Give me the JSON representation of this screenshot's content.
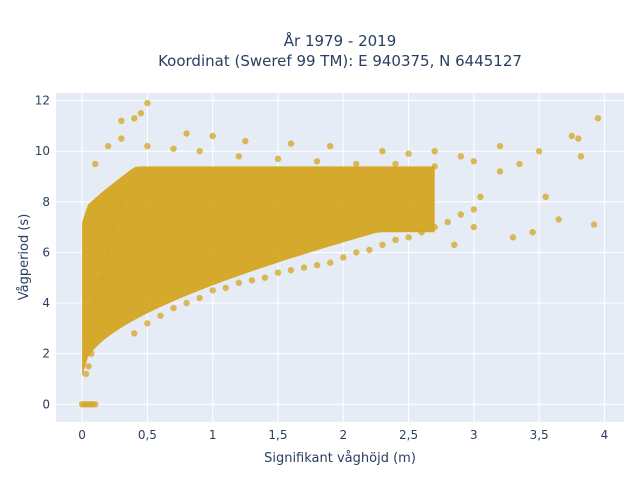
{
  "chart_data": {
    "type": "scatter",
    "title": "År 1979 - 2019",
    "subtitle": "Koordinat (Sweref 99 TM): E 940375, N 6445127",
    "xlabel": "Signifikant våghöjd (m)",
    "ylabel": "Vågperiod (s)",
    "xlim": [
      -0.2,
      4.15
    ],
    "ylim": [
      -0.7,
      12.3
    ],
    "x_ticks": [
      0,
      0.5,
      1,
      1.5,
      2,
      2.5,
      3,
      3.5,
      4
    ],
    "x_tick_labels": [
      "0",
      "0,5",
      "1",
      "1,5",
      "2",
      "2,5",
      "3",
      "3,5",
      "4"
    ],
    "y_ticks": [
      0,
      2,
      4,
      6,
      8,
      10,
      12
    ],
    "y_tick_labels": [
      "0",
      "2",
      "4",
      "6",
      "8",
      "10",
      "12"
    ],
    "grid": true,
    "colors": {
      "marker": "#d4a520",
      "plot_bg": "#e5ecf6",
      "grid": "#ffffff"
    },
    "series": [
      {
        "x": [
          0.0,
          0.02,
          0.04,
          0.06,
          0.08,
          0.1,
          0.03,
          0.05,
          0.07,
          0.05,
          0.1,
          0.15,
          0.2,
          0.25,
          0.3,
          0.4,
          0.5,
          0.6,
          0.7,
          0.8,
          0.9,
          1.0,
          1.1,
          1.2,
          1.3,
          1.4,
          1.5,
          1.6,
          1.7,
          1.8,
          1.9,
          2.0,
          2.1,
          2.2,
          2.3,
          2.4,
          2.5,
          2.6,
          2.7,
          2.8,
          2.9,
          3.0,
          0.1,
          0.2,
          0.3,
          0.5,
          0.7,
          0.9,
          1.2,
          1.5,
          1.8,
          2.1,
          2.4,
          2.7,
          3.0,
          3.2,
          0.3,
          0.4,
          0.45,
          0.5,
          0.8,
          1.0,
          1.25,
          1.6,
          1.9,
          2.3,
          2.5,
          2.7,
          2.9,
          3.05,
          3.2,
          3.35,
          3.5,
          3.55,
          3.65,
          3.75,
          3.8,
          3.82,
          3.92,
          3.95,
          3.3,
          3.45,
          3.0,
          2.85
        ],
        "y": [
          0.0,
          0.0,
          0.0,
          0.0,
          0.0,
          0.0,
          1.2,
          1.5,
          2.0,
          3.0,
          4.0,
          5.0,
          6.0,
          7.0,
          8.0,
          2.8,
          3.2,
          3.5,
          3.8,
          4.0,
          4.2,
          4.5,
          4.6,
          4.8,
          4.9,
          5.0,
          5.2,
          5.3,
          5.4,
          5.5,
          5.6,
          5.8,
          6.0,
          6.1,
          6.3,
          6.5,
          6.6,
          6.8,
          7.0,
          7.2,
          7.5,
          7.7,
          9.5,
          10.2,
          10.5,
          10.2,
          10.1,
          10.0,
          9.8,
          9.7,
          9.6,
          9.5,
          9.5,
          9.4,
          9.6,
          10.2,
          11.2,
          11.3,
          11.5,
          11.9,
          10.7,
          10.6,
          10.4,
          10.3,
          10.2,
          10.0,
          9.9,
          10.0,
          9.8,
          8.2,
          9.2,
          9.5,
          10.0,
          8.2,
          7.3,
          10.6,
          10.5,
          9.8,
          7.1,
          11.3,
          6.6,
          6.8,
          7.0,
          6.3
        ],
        "note": ""
      }
    ]
  }
}
